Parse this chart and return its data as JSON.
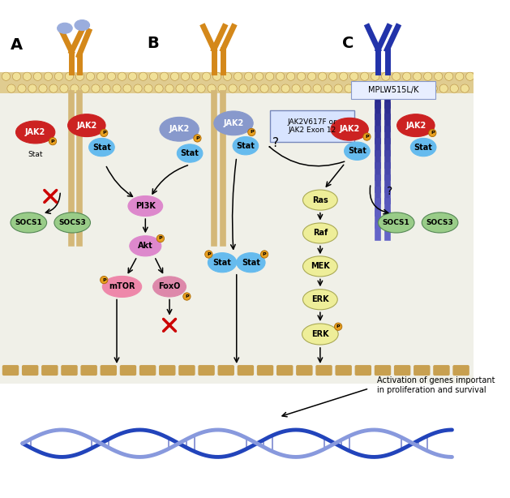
{
  "bg_color": "#f5f5ee",
  "membrane_color": "#d4b483",
  "membrane_dot_color": "#e8d8a0",
  "receptor_A_color": "#d4881a",
  "receptor_B_color": "#d4881a",
  "receptor_C_color": "#3344aa",
  "jak2_red_color": "#cc2222",
  "jak2_blue_color": "#8899cc",
  "stat_color": "#66bbee",
  "p_color": "#e8a020",
  "socs_color": "#99cc88",
  "pi3k_color": "#dd88cc",
  "akt_color": "#dd88cc",
  "mtor_color": "#ee88aa",
  "foxo_color": "#dd88aa",
  "cascade_color": "#eeee99",
  "stat_dimer_color": "#66bbee",
  "dna_dark": "#2244bb",
  "dna_light": "#8899dd",
  "box_color": "#d8e4ff",
  "text_jak2v617f": "JAK2V617F or\nJAK2 Exon 12",
  "text_mplw": "MPLW515L/K",
  "text_activation": "Activation of genes important\nin proliferation and survival",
  "bg_cell_color": "#f0f0e8"
}
